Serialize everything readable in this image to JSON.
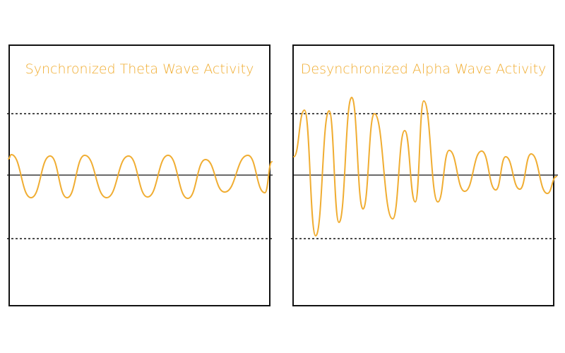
{
  "colors": {
    "wave": "#f0ad32",
    "frame": "#111111",
    "baseline": "#111111",
    "title": "#f0ad32"
  },
  "panels": [
    {
      "title": "Synchronized Theta Wave Activity"
    },
    {
      "title": "Desynchronized Alpha Wave Activity"
    }
  ]
}
